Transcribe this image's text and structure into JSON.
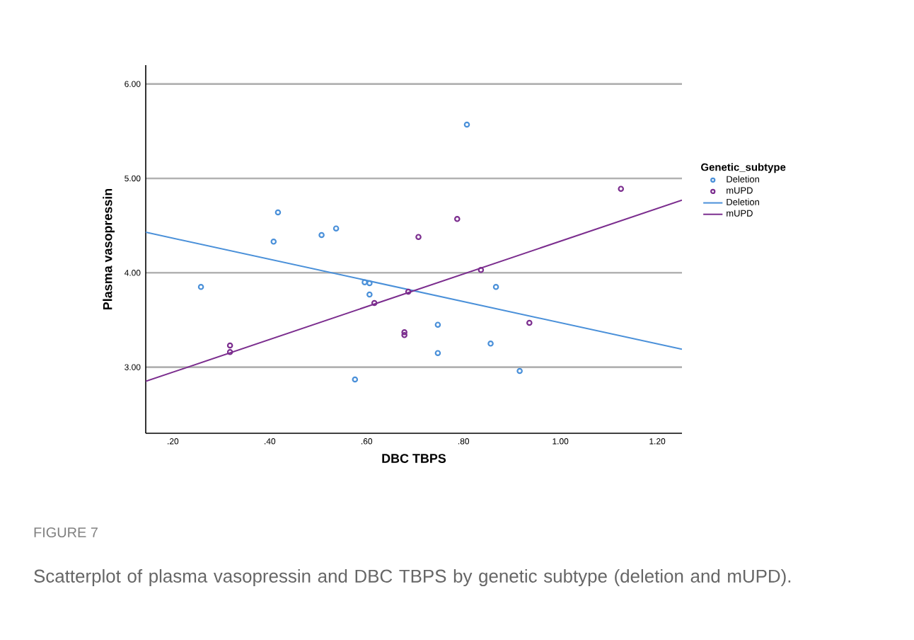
{
  "chart_data": {
    "type": "scatter",
    "xlabel": "DBC TBPS",
    "ylabel": "Plasma vasopressin",
    "legend_title": "Genetic_subtype",
    "legend": "right",
    "grid": "y",
    "marker": "circle",
    "xlim": [
      0.144,
      1.251
    ],
    "ylim": [
      2.3,
      6.2
    ],
    "xticks": [
      {
        "value": 0.2,
        "label": ".20"
      },
      {
        "value": 0.4,
        "label": ".40"
      },
      {
        "value": 0.6,
        "label": ".60"
      },
      {
        "value": 0.8,
        "label": ".80"
      },
      {
        "value": 1.0,
        "label": "1.00"
      },
      {
        "value": 1.2,
        "label": "1.20"
      }
    ],
    "yticks": [
      {
        "value": 3,
        "label": "3.00"
      },
      {
        "value": 4,
        "label": "4.00"
      },
      {
        "value": 5,
        "label": "5.00"
      },
      {
        "value": 6,
        "label": "6.00"
      }
    ],
    "series": [
      {
        "name": "Deletion",
        "color": "#4a90d9",
        "x": [
          0.258,
          0.417,
          0.408,
          0.507,
          0.537,
          0.576,
          0.596,
          0.606,
          0.606,
          0.747,
          0.747,
          0.807,
          0.856,
          0.867,
          0.916
        ],
        "values": [
          3.85,
          4.64,
          4.33,
          4.4,
          4.47,
          2.87,
          3.9,
          3.89,
          3.77,
          3.45,
          3.15,
          5.57,
          3.25,
          3.85,
          2.96
        ]
      },
      {
        "name": "mUPD",
        "color": "#7b2d8e",
        "x": [
          0.318,
          0.318,
          0.616,
          0.678,
          0.678,
          0.686,
          0.707,
          0.787,
          0.836,
          0.936,
          1.125
        ],
        "values": [
          3.23,
          3.16,
          3.68,
          3.37,
          3.34,
          3.8,
          4.38,
          4.57,
          4.03,
          3.47,
          4.89
        ]
      },
      {
        "name": "Deletion",
        "type": "line",
        "marker": "none",
        "color": "#4a90d9",
        "x": [
          0.144,
          1.251
        ],
        "values": [
          4.43,
          3.19
        ]
      },
      {
        "name": "mUPD",
        "type": "line",
        "marker": "none",
        "color": "#7b2d8e",
        "x": [
          0.144,
          1.251
        ],
        "values": [
          2.85,
          4.77
        ]
      }
    ],
    "annotations": [
      "FIGURE 7",
      "Scatterplot of plasma vasopressin and DBC TBPS by genetic subtype (deletion and mUPD)."
    ]
  }
}
